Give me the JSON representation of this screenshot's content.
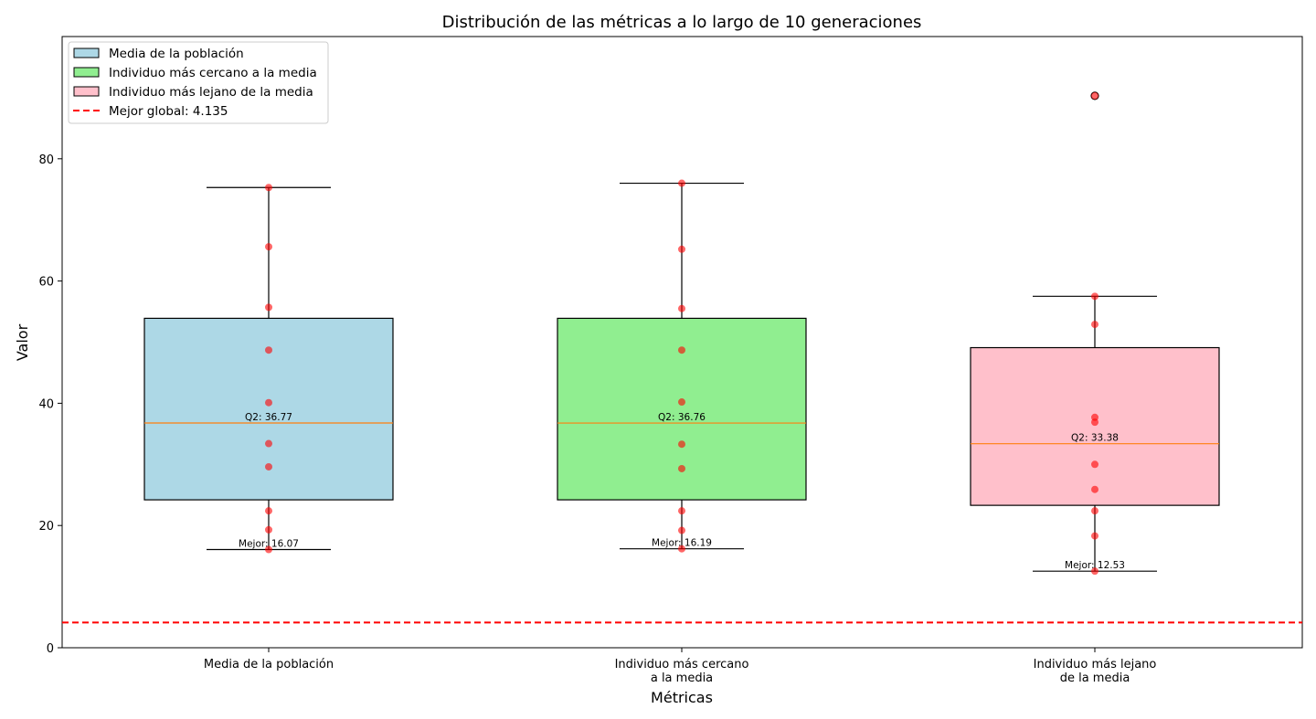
{
  "chart_data": {
    "type": "box",
    "title": "Distribución de las métricas a lo largo de 10 generaciones",
    "xlabel": "Métricas",
    "ylabel": "Valor",
    "ylim": [
      0,
      100
    ],
    "yticks": [
      0,
      20,
      40,
      60,
      80
    ],
    "grid": false,
    "legend_position": "top-left",
    "categories": [
      [
        "Media de la población"
      ],
      [
        "Individuo más cercano",
        "a la media"
      ],
      [
        "Individuo más lejano",
        "de la media"
      ]
    ],
    "series": [
      {
        "name": "Media de la población",
        "color": "#add8e6",
        "whisker_low": 16.07,
        "q1": 24.2,
        "median": 36.77,
        "q3": 53.9,
        "whisker_high": 75.3,
        "outliers": [],
        "points": [
          75.3,
          65.6,
          55.7,
          48.7,
          40.1,
          33.4,
          29.6,
          22.4,
          19.3,
          16.07
        ],
        "median_label": "Q2: 36.77",
        "best_label": "Mejor: 16.07"
      },
      {
        "name": "Individuo más cercano a la media",
        "color": "#90ee90",
        "whisker_low": 16.19,
        "q1": 24.2,
        "median": 36.76,
        "q3": 53.9,
        "whisker_high": 76.0,
        "outliers": [],
        "points": [
          76.0,
          65.2,
          55.5,
          48.7,
          40.2,
          33.3,
          29.3,
          22.4,
          19.2,
          16.19
        ],
        "median_label": "Q2: 36.76",
        "best_label": "Mejor: 16.19"
      },
      {
        "name": "Individuo más lejano de la media",
        "color": "#ffc0cb",
        "whisker_low": 12.53,
        "q1": 23.3,
        "median": 33.38,
        "q3": 49.1,
        "whisker_high": 57.5,
        "outliers": [
          90.3
        ],
        "points": [
          90.3,
          57.5,
          52.9,
          37.7,
          36.9,
          30.0,
          25.9,
          22.4,
          18.3,
          12.53
        ],
        "median_label": "Q2: 33.38",
        "best_label": "Mejor: 12.53"
      }
    ],
    "reference_line": {
      "value": 4.135,
      "label": "Mejor global: 4.135",
      "color": "#ff0000",
      "style": "dashed"
    },
    "colors": {
      "median": "#ff7f0e",
      "points": "#ff0000",
      "outline": "#000000"
    }
  }
}
